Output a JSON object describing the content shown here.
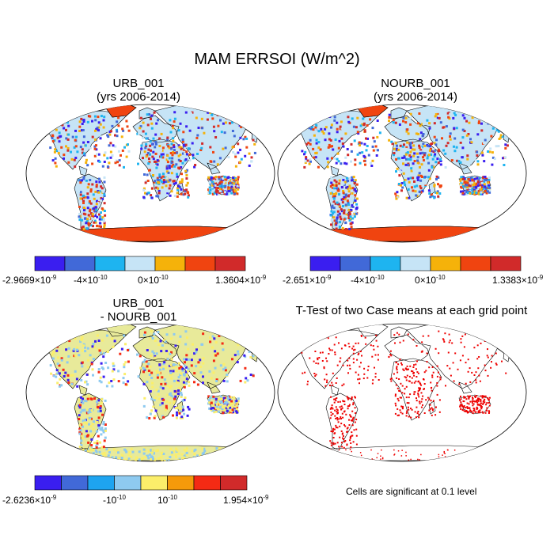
{
  "title": "MAM ERRSOI (W/m^2)",
  "panels": [
    {
      "id": "urb",
      "title_line1": "URB_001",
      "title_line2": "(yrs 2006-2014)",
      "colorbar": {
        "colors": [
          "#3a1ef0",
          "#4169d8",
          "#1eb4f0",
          "#c6e4f6",
          "#f5b20a",
          "#f04410",
          "#d12a2a"
        ],
        "labels": [
          {
            "base": "-2.9669",
            "exp": "-9"
          },
          {
            "base": "-4",
            "exp": "-10"
          },
          {
            "base": "0",
            "exp": "-10"
          },
          {
            "base": "1.3604",
            "exp": "-9"
          }
        ]
      }
    },
    {
      "id": "nourb",
      "title_line1": "NOURB_001",
      "title_line2": "(yrs 2006-2014)",
      "colorbar": {
        "colors": [
          "#3a1ef0",
          "#4169d8",
          "#1eb4f0",
          "#c6e4f6",
          "#f5b20a",
          "#f04410",
          "#d12a2a"
        ],
        "labels": [
          {
            "base": "-2.651",
            "exp": "-9"
          },
          {
            "base": "-4",
            "exp": "-10"
          },
          {
            "base": "0",
            "exp": "-10"
          },
          {
            "base": "1.3383",
            "exp": "-9"
          }
        ]
      }
    },
    {
      "id": "diff",
      "title_line1": "URB_001",
      "title_line2": "- NOURB_001",
      "colorbar": {
        "colors": [
          "#3a1ef0",
          "#4169d8",
          "#1ea4f0",
          "#8ecaf0",
          "#fbee6a",
          "#f59a0a",
          "#f42a14",
          "#d12a2a"
        ],
        "labels": [
          {
            "base": "-2.6236",
            "exp": "-9"
          },
          {
            "base": "-10",
            "exp": "-10"
          },
          {
            "base": "10",
            "exp": "-10"
          },
          {
            "base": "1.954",
            "exp": "-9"
          }
        ]
      }
    },
    {
      "id": "ttest",
      "title_line1": "T-Test of two Case means at each grid point",
      "note": "Cells are significant at 0.1 level"
    }
  ],
  "colors": {
    "antarctica_fill": "#f04410",
    "diff_land": "#e8ea9a",
    "sig_dot": "#ee0000"
  }
}
